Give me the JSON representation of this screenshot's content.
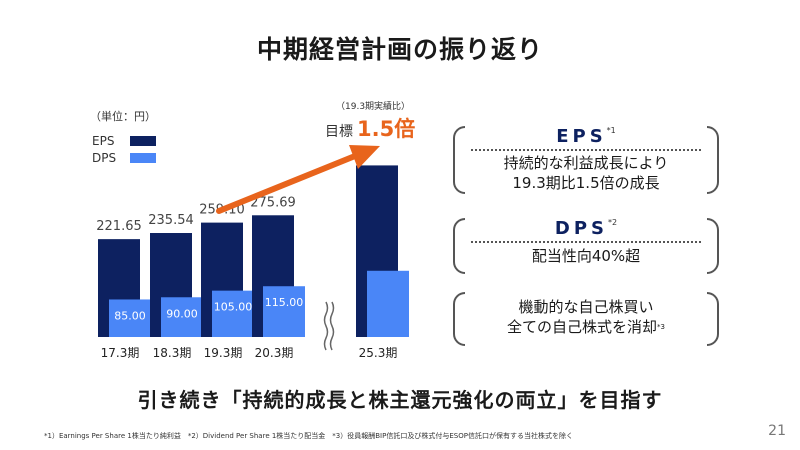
{
  "title": "中期経営計画の振り返り",
  "unit_label": "（単位：円）",
  "legend": [
    {
      "label": "EPS",
      "color": "#0d2160"
    },
    {
      "label": "DPS",
      "color": "#4a86f7"
    }
  ],
  "target": {
    "note": "（19.3期実績比）",
    "label": "目標",
    "value": "1.5倍",
    "accent": "#e8641c"
  },
  "chart_data": {
    "type": "bar",
    "categories": [
      "17.3期",
      "18.3期",
      "19.3期",
      "20.3期",
      "25.3期"
    ],
    "series": [
      {
        "name": "EPS",
        "values": [
          221.65,
          235.54,
          259.1,
          275.69,
          388.65
        ],
        "labels": [
          "221.65",
          "235.54",
          "259.10",
          "275.69",
          ""
        ]
      },
      {
        "name": "DPS",
        "values": [
          85.0,
          90.0,
          105.0,
          115.0,
          150.0
        ],
        "labels": [
          "85.00",
          "90.00",
          "105.00",
          "115.00",
          ""
        ]
      }
    ],
    "ylim": [
      0,
      420
    ],
    "axis_break": "between 20.3期 and 25.3期",
    "xlabel": "",
    "ylabel": "",
    "grid": false
  },
  "panels": [
    {
      "heading": "EPS",
      "mark": "*1",
      "lines": [
        "持続的な利益成長により",
        "19.3期比1.5倍の成長"
      ]
    },
    {
      "heading": "DPS",
      "mark": "*2",
      "lines": [
        "配当性向40%超"
      ]
    },
    {
      "heading": "",
      "mark": "",
      "lines": [
        "機動的な自己株買い",
        "全ての自己株式を消却"
      ],
      "line_mark": "*3"
    }
  ],
  "bottom_message": "引き続き「持続的成長と株主還元強化の両立」を目指す",
  "footnote": "*1）Earnings Per Share 1株当たり純利益　*2）Dividend Per Share 1株当たり配当金　*3）役員報酬BIP信託口及び株式付与ESOP信託口が保有する当社株式を除く",
  "page_number": "21"
}
